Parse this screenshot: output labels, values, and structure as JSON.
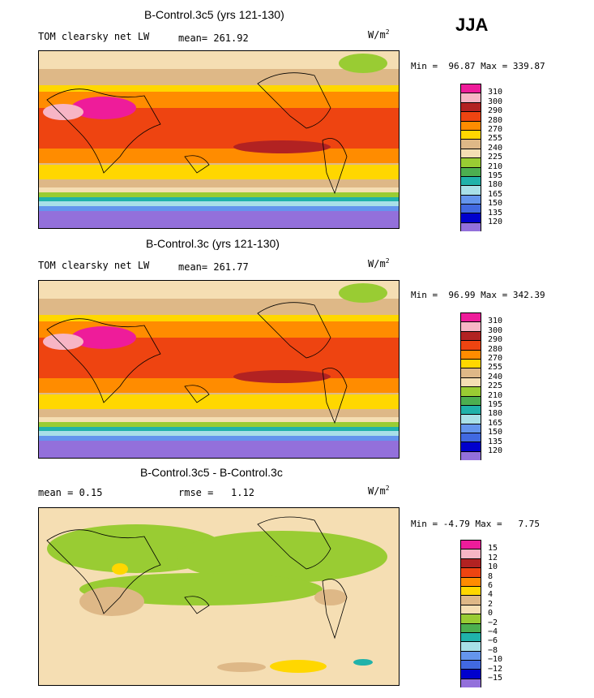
{
  "season": "JJA",
  "units_base": "W/m",
  "units_exp": "2",
  "panels": [
    {
      "title": "B-Control.3c5 (yrs 121-130)",
      "left_label": "TOM clearsky net LW",
      "stat_label": "mean=",
      "stat_value": "261.92",
      "minmax": "Min =  96.87 Max = 339.87"
    },
    {
      "title": "B-Control.3c (yrs 121-130)",
      "left_label": "TOM clearsky net LW",
      "stat_label": "mean=",
      "stat_value": "261.77",
      "minmax": "Min =  96.99 Max = 342.39"
    },
    {
      "title": "B-Control.3c5 - B-Control.3c",
      "left_label": "mean =    0.15",
      "stat_label": "rmse =",
      "stat_value": "1.12",
      "minmax": "Min = -4.79 Max =   7.75"
    }
  ],
  "legend_abs": {
    "labels": [
      "310",
      "300",
      "290",
      "280",
      "270",
      "255",
      "240",
      "225",
      "210",
      "195",
      "180",
      "165",
      "150",
      "135",
      "120"
    ],
    "colors": [
      "#ee1c9a",
      "#f7b5c5",
      "#b22222",
      "#ee4411",
      "#ff8c00",
      "#ffd700",
      "#deb887",
      "#f5deb3",
      "#99cc33",
      "#4caf50",
      "#20b2aa",
      "#a8e0e8",
      "#6495ed",
      "#4169e1",
      "#0000cd",
      "#9370db"
    ]
  },
  "legend_diff": {
    "labels": [
      "15",
      "12",
      "10",
      "8",
      "6",
      "4",
      "2",
      "0",
      "−2",
      "−4",
      "−6",
      "−8",
      "−10",
      "−12",
      "−15"
    ],
    "colors": [
      "#ee1c9a",
      "#f7b5c5",
      "#b22222",
      "#ee4411",
      "#ff8c00",
      "#ffd700",
      "#deb887",
      "#f5deb3",
      "#99cc33",
      "#4caf50",
      "#20b2aa",
      "#a8e0e8",
      "#6495ed",
      "#4169e1",
      "#0000cd",
      "#9370db"
    ]
  }
}
